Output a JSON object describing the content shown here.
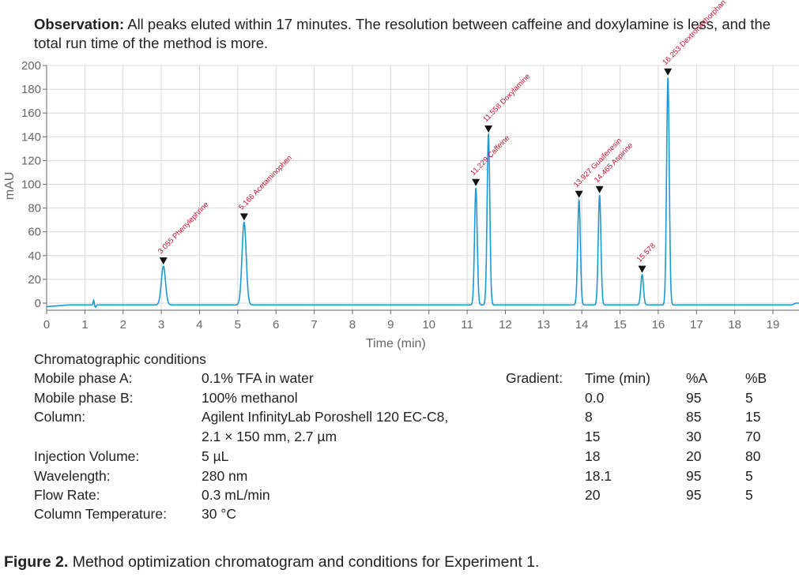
{
  "observation": {
    "label": "Observation:",
    "text": " All peaks eluted within 17 minutes. The resolution between caffeine and doxylamine is less, and the total run time of the method is more."
  },
  "chart_data": {
    "type": "line",
    "xlabel": "Time (min)",
    "ylabel": "mAU",
    "xlim": [
      0,
      19.7
    ],
    "ylim": [
      -6,
      200
    ],
    "xticks": [
      0,
      1,
      2,
      3,
      4,
      5,
      6,
      7,
      8,
      9,
      10,
      11,
      12,
      13,
      14,
      15,
      16,
      17,
      18,
      19
    ],
    "yticks": [
      0,
      20,
      40,
      60,
      80,
      100,
      120,
      140,
      160,
      180,
      200
    ],
    "grid": true,
    "line_color": "#1a9ad6",
    "label_color": "#c8102e",
    "peaks": [
      {
        "time": 3.055,
        "height": 31,
        "label": "3.055 Phenylephrine"
      },
      {
        "time": 5.166,
        "height": 68,
        "label": "5.166 Acetaminophen"
      },
      {
        "time": 11.229,
        "height": 97,
        "label": "11.229 Caffeine"
      },
      {
        "time": 11.558,
        "height": 142,
        "label": "11.558 Doxylamine"
      },
      {
        "time": 13.927,
        "height": 87,
        "label": "13.927 Guaifenesin"
      },
      {
        "time": 14.465,
        "height": 91,
        "label": "14.465 Aspirine"
      },
      {
        "time": 15.578,
        "height": 24,
        "label": "15.578"
      },
      {
        "time": 16.253,
        "height": 190,
        "label": "16.253 Dextromethorphan"
      }
    ]
  },
  "conditions": {
    "heading": "Chromatographic conditions",
    "rows": [
      {
        "label": "Mobile phase A:",
        "value": "0.1% TFA in water"
      },
      {
        "label": "Mobile phase B:",
        "value": "100% methanol"
      },
      {
        "label": "Column:",
        "value": "Agilent InfinityLab Poroshell 120 EC-C8,"
      },
      {
        "label": "",
        "value": "2.1 × 150 mm, 2.7 µm"
      },
      {
        "label": "Injection Volume:",
        "value": "5 µL"
      },
      {
        "label": "Wavelength:",
        "value": "280 nm"
      },
      {
        "label": "Flow Rate:",
        "value": "0.3 mL/min"
      },
      {
        "label": "Column Temperature:",
        "value": "30 °C"
      }
    ],
    "gradient": {
      "label": "Gradient:",
      "headers": [
        "Time (min)",
        "%A",
        "%B"
      ],
      "rows": [
        [
          "0.0",
          "95",
          "5"
        ],
        [
          "8",
          "85",
          "15"
        ],
        [
          "15",
          "30",
          "70"
        ],
        [
          "18",
          "20",
          "80"
        ],
        [
          "18.1",
          "95",
          "5"
        ],
        [
          "20",
          "95",
          "5"
        ]
      ]
    }
  },
  "caption": {
    "label": "Figure 2.",
    "text": " Method optimization chromatogram and conditions for Experiment 1."
  }
}
